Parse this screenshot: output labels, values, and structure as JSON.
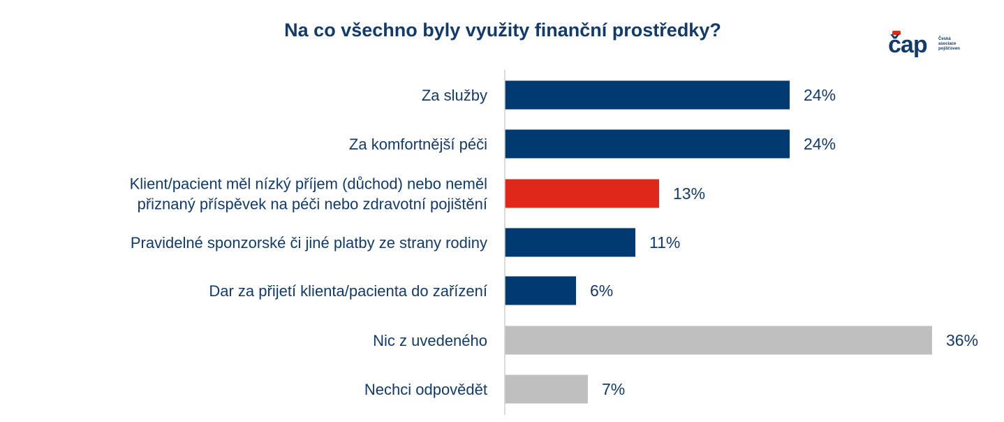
{
  "title": "Na co všechno byly využity finanční prostředky?",
  "logo": {
    "word": "čap",
    "sub": [
      "Česká",
      "asociace",
      "pojišťoven"
    ]
  },
  "colors": {
    "navy": "#003a70",
    "red": "#e0281a",
    "gray": "#bfbfbf",
    "label": "#123a6b"
  },
  "chart_data": {
    "type": "bar",
    "orientation": "horizontal",
    "categories": [
      "Za služby",
      "Za komfortnější péči",
      "Klient/pacient měl nízký příjem (důchod) nebo neměl přiznaný příspěvek na péči nebo zdravotní pojištění",
      "Pravidelné sponzorské či jiné platby ze strany rodiny",
      "Dar za přijetí klienta/pacienta do zařízení",
      "Nic z uvedeného",
      "Nechci odpovědět"
    ],
    "label_lines": [
      [
        "Za služby"
      ],
      [
        "Za komfortnější péči"
      ],
      [
        "Klient/pacient měl nízký příjem (důchod) nebo neměl",
        "přiznaný příspěvek na péči nebo zdravotní pojištění"
      ],
      [
        "Pravidelné sponzorské či jiné platby ze strany rodiny"
      ],
      [
        "Dar za přijetí klienta/pacienta do zařízení"
      ],
      [
        "Nic z uvedeného"
      ],
      [
        "Nechci odpovědět"
      ]
    ],
    "values": [
      24,
      24,
      13,
      11,
      6,
      36,
      7
    ],
    "value_labels": [
      "24%",
      "24%",
      "13%",
      "11%",
      "6%",
      "36%",
      "7%"
    ],
    "bar_colors": [
      "navy",
      "navy",
      "red",
      "navy",
      "navy",
      "gray",
      "gray"
    ],
    "xlim": [
      0,
      36
    ],
    "grid": false,
    "legend": "none"
  }
}
